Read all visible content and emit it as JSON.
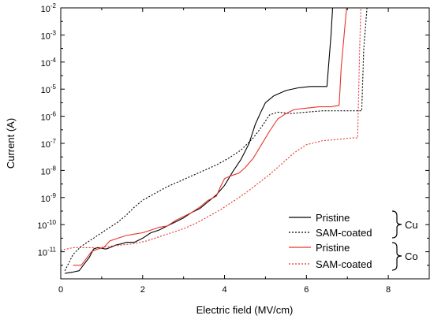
{
  "chart_data": {
    "type": "line",
    "title": "",
    "xlabel": "Electric field (MV/cm)",
    "ylabel": "Current (A)",
    "xlim": [
      0,
      9
    ],
    "ylim": [
      -12,
      -2
    ],
    "y_scale": "log",
    "grid": false,
    "legend_position": "bottom-right",
    "x_ticks": [
      "0",
      "2",
      "4",
      "6",
      "8"
    ],
    "x_tick_values": [
      0,
      2,
      4,
      6,
      8
    ],
    "y_tick_values": [
      -11,
      -10,
      -9,
      -8,
      -7,
      -6,
      -5,
      -4,
      -3,
      -2
    ],
    "y_tick_base": "10",
    "y_tick_exponents": [
      "-11",
      "-10",
      "-9",
      "-8",
      "-7",
      "-6",
      "-5",
      "-4",
      "-3",
      "-2"
    ],
    "groups": [
      {
        "label": "Cu",
        "series": [
          0,
          1
        ]
      },
      {
        "label": "Co",
        "series": [
          2,
          3
        ]
      }
    ],
    "series": [
      {
        "name": "Pristine",
        "group": "Cu",
        "color": "#000000",
        "dash": "solid",
        "points": [
          [
            0.1,
            -11.8
          ],
          [
            0.3,
            -11.75
          ],
          [
            0.45,
            -11.7
          ],
          [
            0.55,
            -11.5
          ],
          [
            0.7,
            -11.2
          ],
          [
            0.8,
            -10.9
          ],
          [
            0.9,
            -10.85
          ],
          [
            1.1,
            -10.9
          ],
          [
            1.2,
            -10.85
          ],
          [
            1.35,
            -10.75
          ],
          [
            1.5,
            -10.7
          ],
          [
            1.6,
            -10.65
          ],
          [
            1.8,
            -10.65
          ],
          [
            2.0,
            -10.5
          ],
          [
            2.2,
            -10.3
          ],
          [
            2.4,
            -10.2
          ],
          [
            2.6,
            -10.05
          ],
          [
            2.8,
            -9.9
          ],
          [
            3.0,
            -9.75
          ],
          [
            3.2,
            -9.55
          ],
          [
            3.4,
            -9.4
          ],
          [
            3.6,
            -9.15
          ],
          [
            3.8,
            -8.9
          ],
          [
            4.0,
            -8.55
          ],
          [
            4.2,
            -8.05
          ],
          [
            4.4,
            -7.6
          ],
          [
            4.6,
            -7.0
          ],
          [
            4.75,
            -6.3
          ],
          [
            4.9,
            -5.8
          ],
          [
            5.0,
            -5.5
          ],
          [
            5.2,
            -5.25
          ],
          [
            5.5,
            -5.05
          ],
          [
            5.8,
            -4.95
          ],
          [
            6.1,
            -4.9
          ],
          [
            6.35,
            -4.9
          ],
          [
            6.5,
            -4.9
          ],
          [
            6.6,
            -3.0
          ],
          [
            6.64,
            -2.0
          ],
          [
            9.0,
            -2.0
          ]
        ]
      },
      {
        "name": "SAM-coated",
        "group": "Cu",
        "color": "#000000",
        "dash": "dotted",
        "points": [
          [
            0.1,
            -11.7
          ],
          [
            0.3,
            -11.1
          ],
          [
            0.5,
            -10.8
          ],
          [
            0.8,
            -10.5
          ],
          [
            1.0,
            -10.3
          ],
          [
            1.2,
            -10.1
          ],
          [
            1.4,
            -9.9
          ],
          [
            1.6,
            -9.65
          ],
          [
            1.8,
            -9.35
          ],
          [
            2.0,
            -9.1
          ],
          [
            2.3,
            -8.85
          ],
          [
            2.6,
            -8.6
          ],
          [
            2.9,
            -8.4
          ],
          [
            3.2,
            -8.2
          ],
          [
            3.5,
            -8.0
          ],
          [
            3.8,
            -7.8
          ],
          [
            4.1,
            -7.55
          ],
          [
            4.4,
            -7.25
          ],
          [
            4.7,
            -6.8
          ],
          [
            4.9,
            -6.4
          ],
          [
            5.1,
            -5.95
          ],
          [
            5.3,
            -5.85
          ],
          [
            5.6,
            -5.9
          ],
          [
            6.0,
            -5.85
          ],
          [
            6.4,
            -5.8
          ],
          [
            6.8,
            -5.8
          ],
          [
            7.2,
            -5.8
          ],
          [
            7.35,
            -5.8
          ],
          [
            7.4,
            -3.5
          ],
          [
            7.48,
            -2.0
          ],
          [
            9.0,
            -2.0
          ]
        ]
      },
      {
        "name": "Pristine",
        "group": "Co",
        "color": "#e8342a",
        "dash": "solid",
        "points": [
          [
            0.3,
            -11.5
          ],
          [
            0.5,
            -11.5
          ],
          [
            0.6,
            -11.3
          ],
          [
            0.75,
            -11.0
          ],
          [
            0.9,
            -10.9
          ],
          [
            1.05,
            -10.85
          ],
          [
            1.2,
            -10.6
          ],
          [
            1.4,
            -10.5
          ],
          [
            1.6,
            -10.4
          ],
          [
            1.8,
            -10.35
          ],
          [
            2.0,
            -10.3
          ],
          [
            2.2,
            -10.2
          ],
          [
            2.4,
            -10.1
          ],
          [
            2.6,
            -10.05
          ],
          [
            2.8,
            -9.85
          ],
          [
            3.0,
            -9.7
          ],
          [
            3.2,
            -9.55
          ],
          [
            3.4,
            -9.35
          ],
          [
            3.6,
            -9.1
          ],
          [
            3.8,
            -8.95
          ],
          [
            3.9,
            -8.6
          ],
          [
            4.0,
            -8.3
          ],
          [
            4.15,
            -8.2
          ],
          [
            4.35,
            -8.1
          ],
          [
            4.5,
            -7.9
          ],
          [
            4.7,
            -7.55
          ],
          [
            4.9,
            -7.05
          ],
          [
            5.1,
            -6.55
          ],
          [
            5.3,
            -6.1
          ],
          [
            5.5,
            -5.9
          ],
          [
            5.7,
            -5.75
          ],
          [
            6.0,
            -5.7
          ],
          [
            6.3,
            -5.65
          ],
          [
            6.6,
            -5.65
          ],
          [
            6.8,
            -5.6
          ],
          [
            6.85,
            -4.2
          ],
          [
            6.98,
            -2.0
          ],
          [
            9.0,
            -2.0
          ]
        ]
      },
      {
        "name": "SAM-coated",
        "group": "Co",
        "color": "#e8342a",
        "dash": "dotted",
        "points": [
          [
            0.0,
            -10.95
          ],
          [
            0.3,
            -10.85
          ],
          [
            0.6,
            -10.85
          ],
          [
            0.9,
            -10.85
          ],
          [
            1.2,
            -10.8
          ],
          [
            1.5,
            -10.75
          ],
          [
            1.8,
            -10.7
          ],
          [
            2.1,
            -10.6
          ],
          [
            2.4,
            -10.45
          ],
          [
            2.7,
            -10.3
          ],
          [
            3.0,
            -10.15
          ],
          [
            3.3,
            -9.95
          ],
          [
            3.6,
            -9.7
          ],
          [
            3.9,
            -9.45
          ],
          [
            4.2,
            -9.15
          ],
          [
            4.5,
            -8.85
          ],
          [
            4.8,
            -8.5
          ],
          [
            5.1,
            -8.15
          ],
          [
            5.4,
            -7.75
          ],
          [
            5.7,
            -7.35
          ],
          [
            6.0,
            -7.05
          ],
          [
            6.4,
            -6.9
          ],
          [
            6.8,
            -6.85
          ],
          [
            7.1,
            -6.8
          ],
          [
            7.25,
            -6.8
          ],
          [
            7.3,
            -3.5
          ],
          [
            7.33,
            -2.0
          ],
          [
            9.0,
            -2.0
          ]
        ]
      }
    ]
  }
}
